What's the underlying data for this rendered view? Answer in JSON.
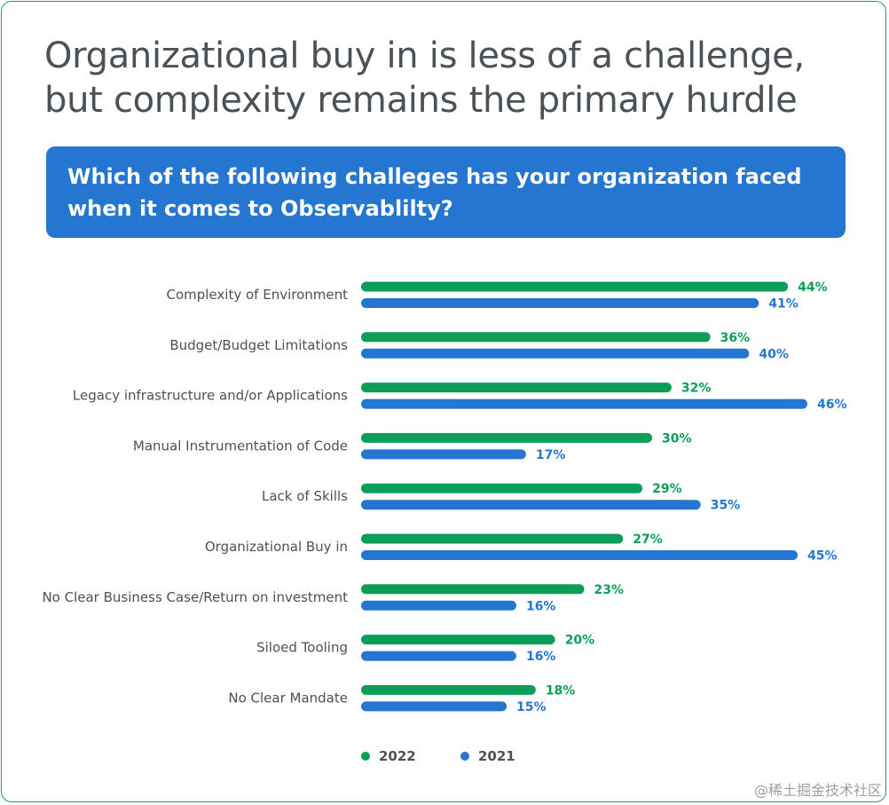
{
  "title_lines": [
    "Organizational buy in is less of a challenge,",
    "but complexity remains the primary hurdle"
  ],
  "question_lines": [
    "Which of the following challeges has your organization faced",
    "when it comes to Observablilty?"
  ],
  "watermark": "@稀土掘金技术社区",
  "colors": {
    "series_2022": "#0a9e58",
    "series_2021": "#2476d0",
    "frame": "#1fa15a"
  },
  "chart_data": {
    "type": "bar",
    "orientation": "horizontal",
    "categories": [
      "Complexity of Environment",
      "Budget/Budget Limitations",
      "Legacy infrastructure and/or Applications",
      "Manual Instrumentation of Code",
      "Lack of Skills",
      "Organizational Buy in",
      "No Clear Business Case/Return on investment",
      "Siloed Tooling",
      "No Clear Mandate"
    ],
    "series": [
      {
        "name": "2022",
        "color": "#0a9e58",
        "values": [
          44,
          36,
          32,
          30,
          29,
          27,
          23,
          20,
          18
        ]
      },
      {
        "name": "2021",
        "color": "#2476d0",
        "values": [
          41,
          40,
          46,
          17,
          35,
          45,
          16,
          16,
          15
        ]
      }
    ],
    "value_suffix": "%",
    "xlim": [
      0,
      46
    ],
    "grid": false,
    "legend_position": "bottom"
  }
}
